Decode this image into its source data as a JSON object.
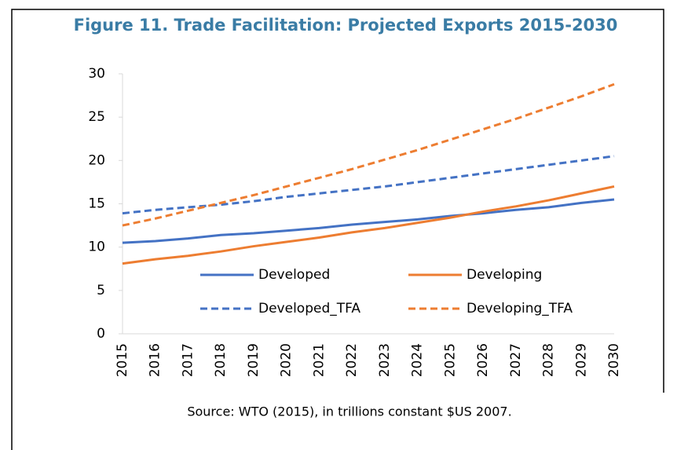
{
  "chart_data": {
    "type": "line",
    "title": "Figure 11. Trade Facilitation: Projected Exports 2015-2030",
    "source": "Source: WTO (2015), in trillions constant $US 2007.",
    "categories": [
      "2015",
      "2016",
      "2017",
      "2018",
      "2019",
      "2020",
      "2021",
      "2022",
      "2023",
      "2024",
      "2025",
      "2026",
      "2027",
      "2028",
      "2029",
      "2030"
    ],
    "series": [
      {
        "name": "Developed",
        "color": "#4472c4",
        "dashed": false,
        "values": [
          10.5,
          10.7,
          11.0,
          11.4,
          11.6,
          11.9,
          12.2,
          12.6,
          12.9,
          13.2,
          13.6,
          13.9,
          14.3,
          14.6,
          15.1,
          15.5
        ]
      },
      {
        "name": "Developing",
        "color": "#ed7d31",
        "dashed": false,
        "values": [
          8.1,
          8.6,
          9.0,
          9.5,
          10.1,
          10.6,
          11.1,
          11.7,
          12.2,
          12.8,
          13.4,
          14.1,
          14.7,
          15.4,
          16.2,
          17.0
        ]
      },
      {
        "name": "Developed_TFA",
        "color": "#4472c4",
        "dashed": true,
        "values": [
          13.9,
          14.3,
          14.6,
          14.9,
          15.3,
          15.8,
          16.2,
          16.6,
          17.0,
          17.5,
          18.0,
          18.5,
          19.0,
          19.5,
          20.0,
          20.5
        ]
      },
      {
        "name": "Developing_TFA",
        "color": "#ed7d31",
        "dashed": true,
        "values": [
          12.5,
          13.3,
          14.2,
          15.1,
          16.0,
          17.0,
          18.0,
          19.0,
          20.1,
          21.2,
          22.4,
          23.6,
          24.8,
          26.1,
          27.4,
          28.8
        ]
      }
    ],
    "ylim": [
      0,
      30
    ],
    "yticks": [
      0,
      5,
      10,
      15,
      20,
      25,
      30
    ],
    "grid": false
  }
}
